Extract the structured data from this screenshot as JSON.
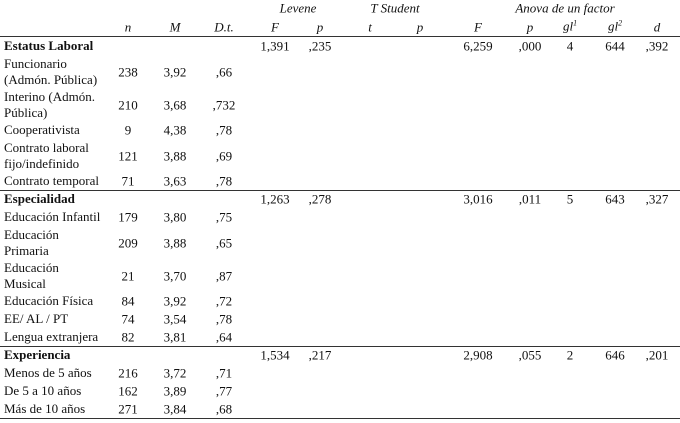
{
  "header": {
    "groups": [
      "Levene",
      "T Student",
      "Anova de un factor"
    ],
    "columns": [
      "n",
      "M",
      "D.t.",
      "F",
      "p",
      "t",
      "p",
      "F",
      "p",
      {
        "text": "gl",
        "sup": "1"
      },
      {
        "text": "gl",
        "sup": "2"
      },
      "d"
    ]
  },
  "sections": [
    {
      "title": "Estatus Laboral",
      "levene": [
        "1,391",
        ",235"
      ],
      "anova": [
        "6,259",
        ",000",
        "4",
        "644",
        ",392"
      ],
      "rows": [
        {
          "label": [
            "Funcionario",
            "(Admón. Pública)"
          ],
          "n": "238",
          "M": "3,92",
          "Dt": ",66"
        },
        {
          "label": [
            "Interino (Admón.",
            "Pública)"
          ],
          "n": "210",
          "M": "3,68",
          "Dt": ",732"
        },
        {
          "label": [
            "Cooperativista"
          ],
          "n": "9",
          "M": "4,38",
          "Dt": ",78"
        },
        {
          "label": [
            "Contrato laboral",
            "fijo/indefinido"
          ],
          "n": "121",
          "M": "3,88",
          "Dt": ",69"
        },
        {
          "label": [
            "Contrato temporal"
          ],
          "n": "71",
          "M": "3,63",
          "Dt": ",78"
        }
      ]
    },
    {
      "title": "Especialidad",
      "levene": [
        "1,263",
        ",278"
      ],
      "anova": [
        "3,016",
        ",011",
        "5",
        "643",
        ",327"
      ],
      "rows": [
        {
          "label": [
            "Educación Infantil"
          ],
          "n": "179",
          "M": "3,80",
          "Dt": ",75"
        },
        {
          "label": [
            "Educación",
            "Primaria"
          ],
          "n": "209",
          "M": "3,88",
          "Dt": ",65"
        },
        {
          "label": [
            "Educación",
            "Musical"
          ],
          "n": "21",
          "M": "3,70",
          "Dt": ",87"
        },
        {
          "label": [
            "Educación Física"
          ],
          "n": "84",
          "M": "3,92",
          "Dt": ",72"
        },
        {
          "label": [
            "EE/ AL / PT"
          ],
          "n": "74",
          "M": "3,54",
          "Dt": ",78"
        },
        {
          "label": [
            "Lengua extranjera"
          ],
          "n": "82",
          "M": "3,81",
          "Dt": ",64"
        }
      ]
    },
    {
      "title": "Experiencia",
      "levene": [
        "1,534",
        ",217"
      ],
      "anova": [
        "2,908",
        ",055",
        "2",
        "646",
        ",201"
      ],
      "rows": [
        {
          "label": [
            "Menos de 5 años"
          ],
          "n": "216",
          "M": "3,72",
          "Dt": ",71"
        },
        {
          "label": [
            "De 5 a 10 años"
          ],
          "n": "162",
          "M": "3,89",
          "Dt": ",77"
        },
        {
          "label": [
            "Más de 10 años"
          ],
          "n": "271",
          "M": "3,84",
          "Dt": ",68"
        }
      ]
    }
  ]
}
